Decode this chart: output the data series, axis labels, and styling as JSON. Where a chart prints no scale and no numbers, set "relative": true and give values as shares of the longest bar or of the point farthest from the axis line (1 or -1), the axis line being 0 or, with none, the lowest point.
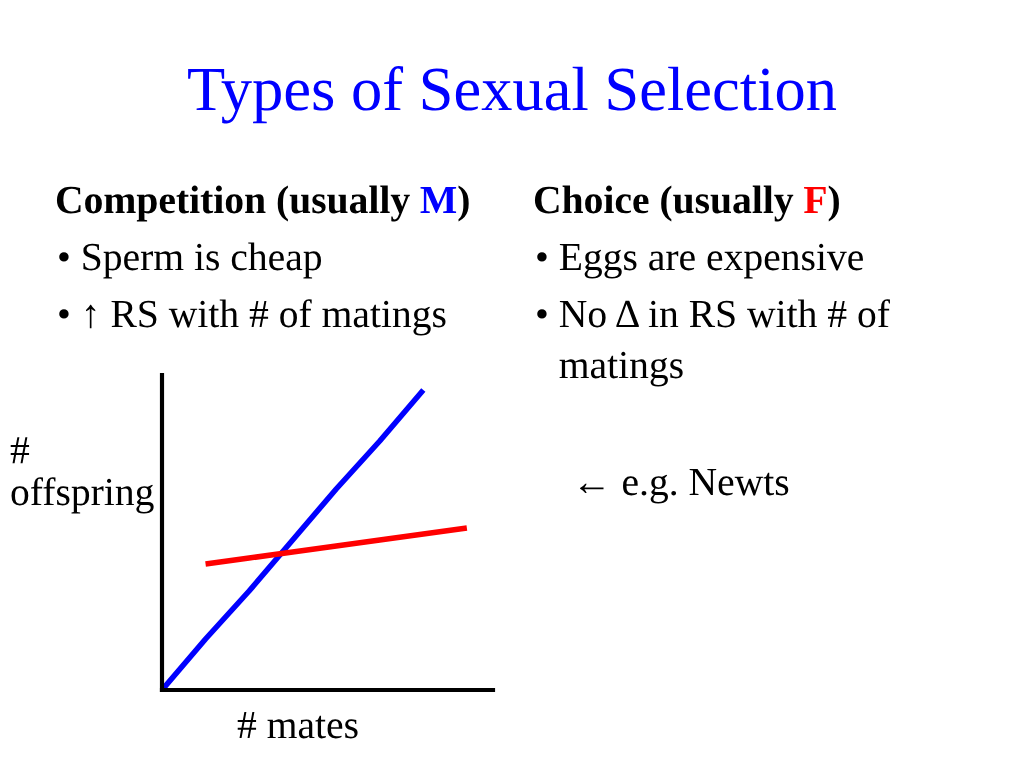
{
  "chart_data": {
    "type": "line",
    "title": "Types of Sexual Selection",
    "xlabel": "# mates",
    "ylabel": "#\noffspring",
    "relative": true,
    "tick_labels": false,
    "legend": false,
    "marker": "none",
    "line_style": "solid",
    "categories": [
      null,
      null,
      null,
      null,
      null,
      null,
      null,
      null
    ],
    "series": [
      {
        "color": "#0000ff",
        "values": [
          0,
          0.17,
          0.33,
          0.5,
          0.67,
          0.83,
          1,
          null
        ]
      },
      {
        "color": "#ff0000",
        "values": [
          null,
          0.42,
          0.44,
          0.46,
          0.48,
          0.5,
          0.52,
          0.54
        ]
      }
    ],
    "annotations": [
      "Competition (usually ",
      "M",
      ")",
      "• Sperm is cheap",
      "• ↑ RS with # of matings",
      "Choice (usually ",
      "F",
      ")",
      "• Eggs are expensive",
      "• No Δ in RS with # of matings",
      "← e.g. Newts"
    ]
  }
}
